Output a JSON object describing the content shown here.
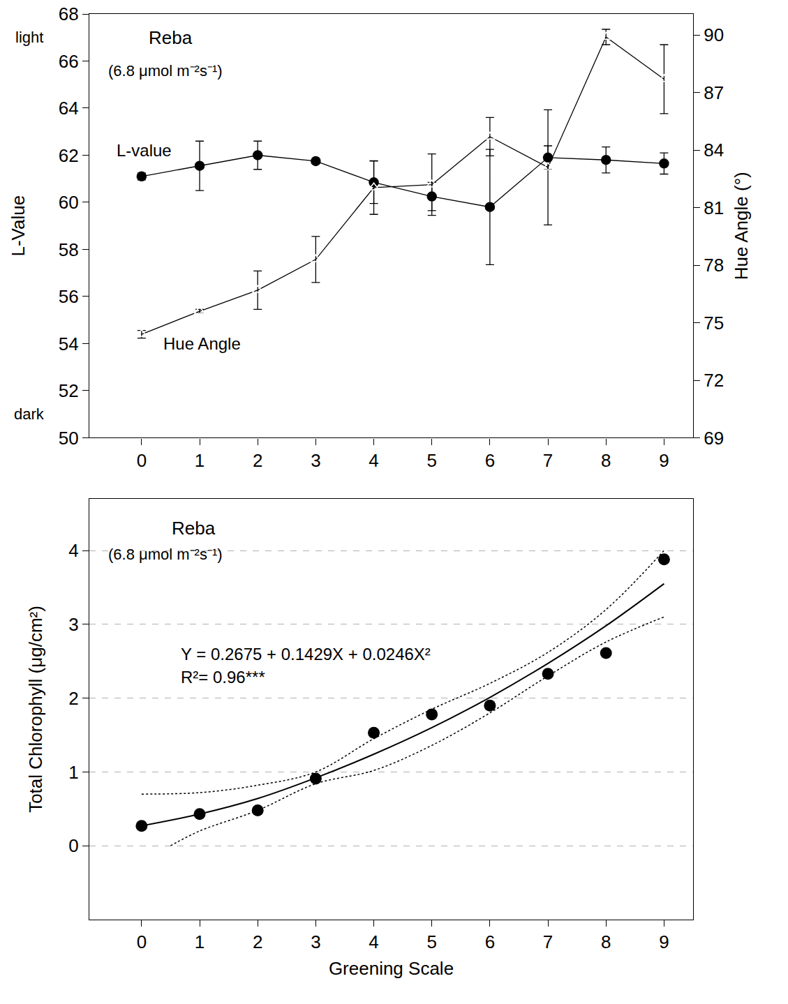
{
  "chart_data": [
    {
      "type": "line",
      "title": "Reba",
      "subtitle": "(6.8 μmol m⁻²s⁻¹)",
      "y_label": "L-Value",
      "y2_label": "Hue Angle (°)",
      "x": [
        0,
        1,
        2,
        3,
        4,
        5,
        6,
        7,
        8,
        9
      ],
      "xlim": [
        -0.9,
        9.5
      ],
      "xticks": [
        0,
        1,
        2,
        3,
        4,
        5,
        6,
        7,
        8,
        9
      ],
      "ylim": [
        50,
        68
      ],
      "yticks": [
        50,
        52,
        54,
        56,
        58,
        60,
        62,
        64,
        66,
        68
      ],
      "y2lim": [
        69,
        91.1
      ],
      "y2ticks": [
        69,
        72,
        75,
        78,
        81,
        84,
        87,
        90
      ],
      "grid": false,
      "annotations": [
        "light",
        "dark"
      ],
      "series": [
        {
          "name": "L-value",
          "color": "#000000",
          "marker": "circle",
          "line_style": "solid",
          "values": [
            61.1,
            61.55,
            62.0,
            61.75,
            60.85,
            60.25,
            59.8,
            61.9,
            61.8,
            61.65
          ],
          "errors": [
            0.15,
            1.05,
            0.6,
            0.1,
            0.9,
            0.6,
            2.45,
            0.5,
            0.55,
            0.45
          ]
        },
        {
          "name": "Hue Angle",
          "axis": "y2",
          "color": "#000000",
          "marker": "triangle-up-open",
          "line_style": "solid",
          "values": [
            74.4,
            75.6,
            76.7,
            78.3,
            82.05,
            82.2,
            84.7,
            83.1,
            89.9,
            87.7
          ],
          "errors": [
            0.2,
            0.1,
            1.0,
            1.2,
            1.4,
            1.6,
            1.0,
            3.0,
            0.4,
            1.8
          ]
        }
      ]
    },
    {
      "type": "scatter",
      "title": "Reba",
      "subtitle": "(6.8 μmol m⁻²s⁻¹)",
      "x_label": "Greening Scale",
      "y_label": "Total Chlorophyll (μg/cm²)",
      "xlim": [
        -0.9,
        9.5
      ],
      "xticks": [
        0,
        1,
        2,
        3,
        4,
        5,
        6,
        7,
        8,
        9
      ],
      "ylim": [
        -1.0,
        4.7
      ],
      "yticks": [
        0,
        1,
        2,
        3,
        4
      ],
      "grid": true,
      "annotations": [
        "Y = 0.2675 + 0.1429X + 0.0246X²",
        "R²= 0.96***"
      ],
      "series": [
        {
          "type": "scatter",
          "color": "#000000",
          "marker": "circle",
          "x": [
            0,
            1,
            2,
            3,
            4,
            5,
            6,
            7,
            8,
            9
          ],
          "values": [
            0.27,
            0.43,
            0.48,
            0.91,
            1.53,
            1.78,
            1.9,
            2.33,
            2.61,
            3.88
          ]
        },
        {
          "type": "line",
          "color": "#000000",
          "line_style": "solid",
          "x": [
            0,
            1,
            2,
            3,
            4,
            5,
            6,
            7,
            8,
            9
          ],
          "values": [
            0.27,
            0.43,
            0.64,
            0.92,
            1.24,
            1.6,
            2.01,
            2.47,
            2.98,
            3.55
          ]
        },
        {
          "type": "line",
          "color": "#000000",
          "line_style": "dotted",
          "x": [
            0,
            1,
            2,
            3,
            4,
            5,
            6,
            7,
            8,
            9
          ],
          "values": [
            0.7,
            0.72,
            0.82,
            1.0,
            1.45,
            1.85,
            2.2,
            2.62,
            3.2,
            4.0
          ]
        },
        {
          "type": "line",
          "color": "#000000",
          "line_style": "dotted",
          "x": [
            0.5,
            1,
            2,
            3,
            4,
            5,
            6,
            7,
            8,
            9
          ],
          "values": [
            0.0,
            0.2,
            0.48,
            0.84,
            1.02,
            1.36,
            1.8,
            2.3,
            2.76,
            3.1
          ]
        }
      ]
    }
  ]
}
